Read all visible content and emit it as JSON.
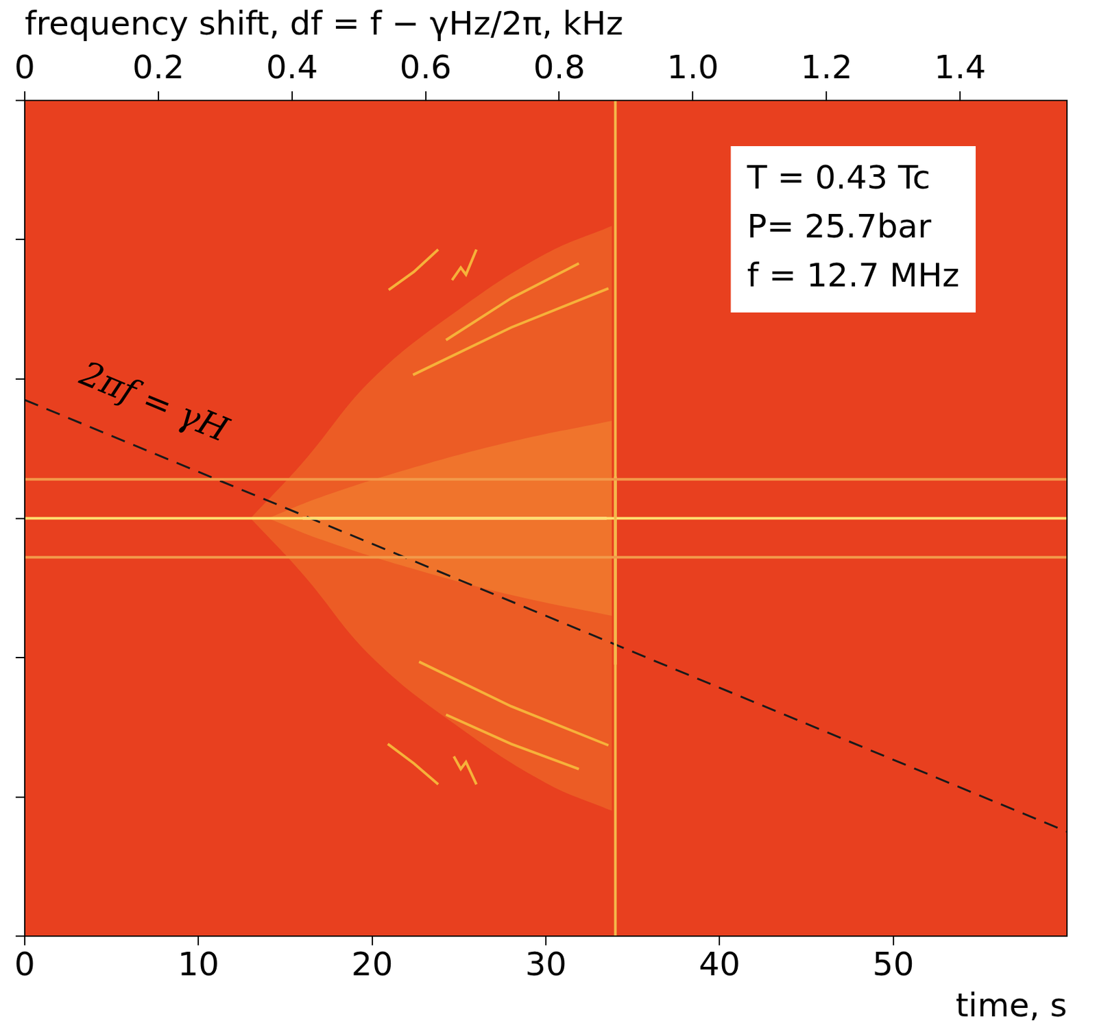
{
  "chart_data": {
    "type": "line",
    "x_label": "time, s",
    "x2_label": "frequency shift, df = f − γHz/2π, kHz",
    "xlim": [
      0,
      60
    ],
    "xticks": [
      0,
      10,
      20,
      30,
      40,
      50
    ],
    "x2lim": [
      0,
      1.56
    ],
    "x2ticks": [
      0,
      0.2,
      0.4,
      0.6,
      0.8,
      {
        "value": 1,
        "label": "1.0"
      },
      1.2,
      1.4
    ],
    "ylim": [
      -3,
      3
    ],
    "yticks": [
      -3,
      -2,
      -1,
      0,
      1,
      2,
      3
    ],
    "tick_labels": "x",
    "grid": false,
    "color": "#e8401f",
    "annotations": [
      {
        "text": "2πf = γH",
        "x": 7.4,
        "y": 0.82
      }
    ],
    "info_box": [
      "T = 0.43 Tc",
      "P= 25.7bar",
      "f = 12.7 MHz"
    ],
    "series": [
      {
        "type": "area",
        "color": "#f0782c80",
        "x": [
          13,
          16,
          20,
          25,
          30,
          33.8
        ],
        "values": [
          0,
          0.4,
          1.0,
          1.5,
          1.9,
          2.1
        ]
      },
      {
        "type": "area",
        "color": "#f0782c80",
        "x": [
          13,
          16,
          20,
          25,
          30,
          33.8
        ],
        "values": [
          0,
          -0.4,
          -1.0,
          -1.5,
          -1.9,
          -2.1
        ]
      },
      {
        "type": "area",
        "color": "#f8a03c80",
        "x": [
          14,
          17,
          22,
          28,
          33.8
        ],
        "values": [
          0,
          0.15,
          0.35,
          0.55,
          0.7
        ]
      },
      {
        "type": "area",
        "color": "#f8a03c80",
        "x": [
          14,
          17,
          22,
          28,
          33.8
        ],
        "values": [
          0,
          -0.15,
          -0.35,
          -0.55,
          -0.7
        ]
      },
      {
        "color": "#f29a4a",
        "x": [
          0,
          60
        ],
        "values": [
          0.28,
          0.28
        ]
      },
      {
        "color": "#f29a4a",
        "x": [
          0,
          60
        ],
        "values": [
          -0.28,
          -0.28
        ]
      },
      {
        "color": "#f5b84a",
        "x": [
          34,
          34
        ],
        "values": [
          -3,
          3
        ]
      },
      {
        "color": "#ffe870",
        "x": [
          34,
          34
        ],
        "values": [
          0.3,
          -1.05
        ]
      },
      {
        "color": "#ffe070",
        "x": [
          0,
          60
        ],
        "values": [
          0,
          0
        ]
      },
      {
        "color": "#fff6d0",
        "x": [
          16,
          33.5
        ],
        "values": [
          0,
          0
        ]
      },
      {
        "color": "#f6b23a",
        "x": [
          20.95,
          22.4,
          23.8
        ],
        "values": [
          1.64,
          1.77,
          1.93
        ]
      },
      {
        "color": "#f6b23a",
        "x": [
          24.6,
          25.1,
          25.4,
          26.0
        ],
        "values": [
          1.71,
          1.8,
          1.75,
          1.93
        ]
      },
      {
        "color": "#f6b23a",
        "x": [
          24.25,
          28.0,
          31.9
        ],
        "values": [
          1.28,
          1.58,
          1.83
        ]
      },
      {
        "color": "#f6b23a",
        "x": [
          22.35,
          28.0,
          33.6
        ],
        "values": [
          1.03,
          1.37,
          1.65
        ]
      },
      {
        "color": "#f6b23a",
        "x": [
          20.9,
          22.4,
          23.8
        ],
        "values": [
          -1.62,
          -1.76,
          -1.91
        ]
      },
      {
        "color": "#f6b23a",
        "x": [
          24.7,
          25.1,
          25.4,
          26.0
        ],
        "values": [
          -1.71,
          -1.8,
          -1.75,
          -1.91
        ]
      },
      {
        "color": "#f6b23a",
        "x": [
          24.25,
          28.0,
          31.9
        ],
        "values": [
          -1.41,
          -1.62,
          -1.8
        ]
      },
      {
        "color": "#f6b23a",
        "x": [
          22.7,
          28.0,
          33.6
        ],
        "values": [
          -1.03,
          -1.35,
          -1.63
        ]
      },
      {
        "color": "#1a1a1a",
        "line_style": "dashed",
        "x": [
          0,
          60
        ],
        "values": [
          0.85,
          -2.25
        ]
      }
    ]
  }
}
